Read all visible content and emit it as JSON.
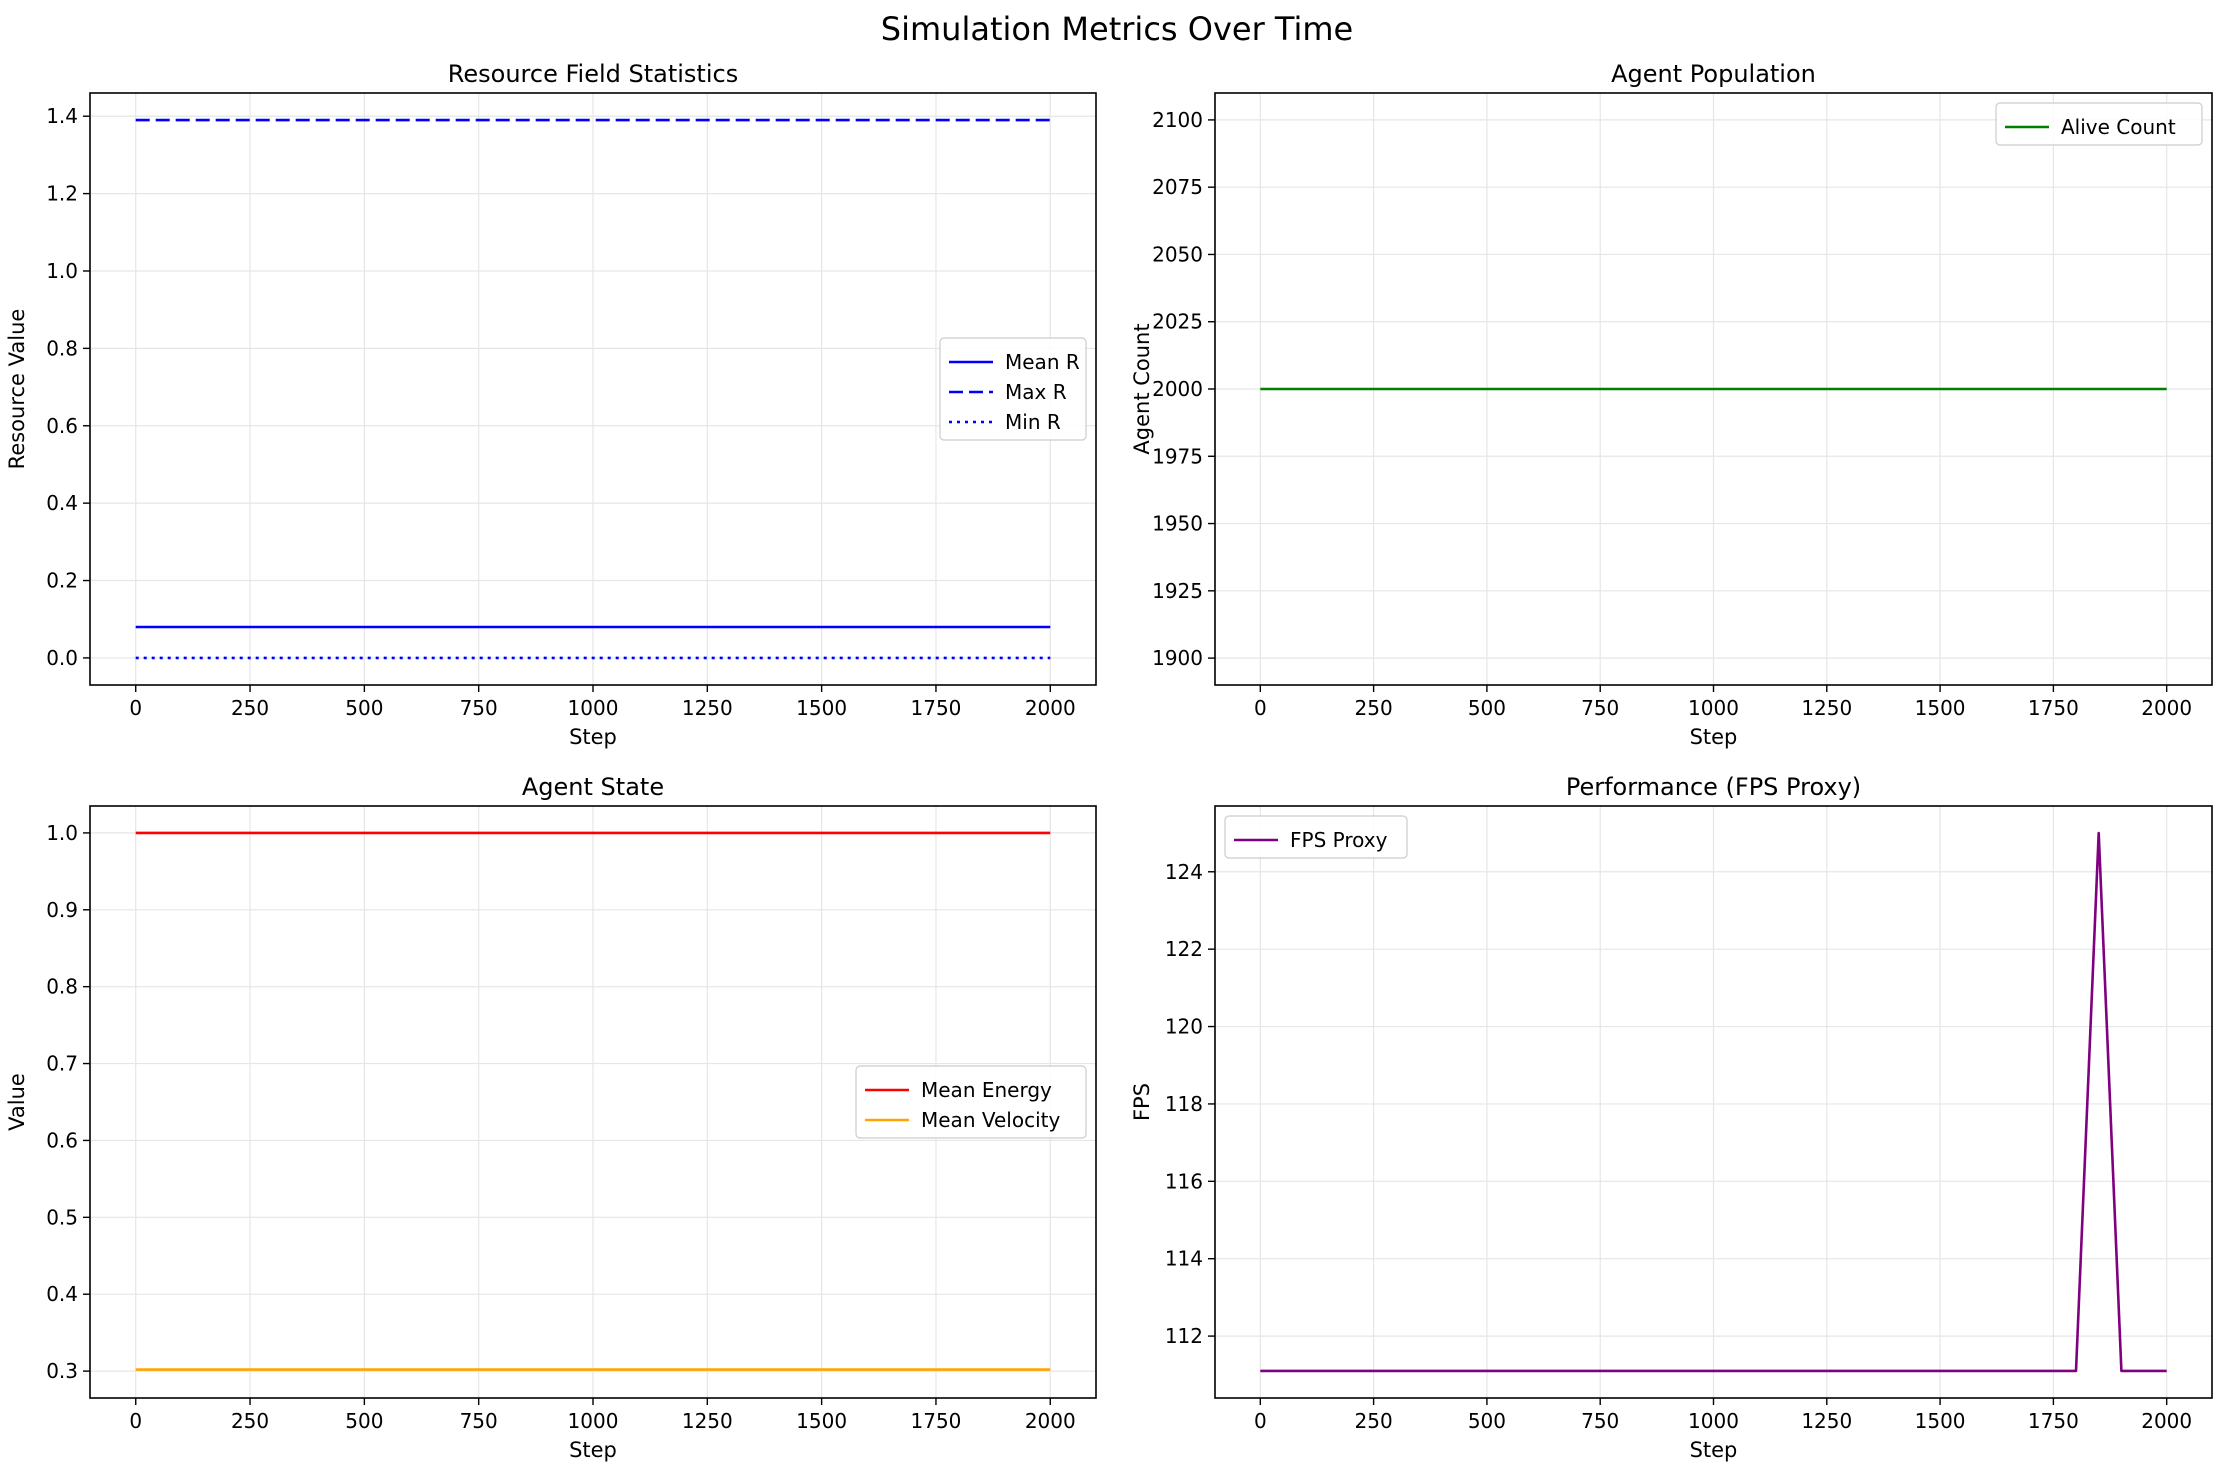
{
  "figure": {
    "title": "Simulation Metrics Over Time"
  },
  "chart_data": [
    {
      "type": "line",
      "title": "Resource Field Statistics",
      "xlabel": "Step",
      "ylabel": "Resource Value",
      "xlim": [
        -100,
        2100
      ],
      "ylim": [
        -0.07,
        1.46
      ],
      "xticks": [
        0,
        250,
        500,
        750,
        1000,
        1250,
        1500,
        1750,
        2000
      ],
      "yticks": [
        0.0,
        0.2,
        0.4,
        0.6,
        0.8,
        1.0,
        1.2,
        1.4
      ],
      "ytick_labels": [
        "0.0",
        "0.2",
        "0.4",
        "0.6",
        "0.8",
        "1.0",
        "1.2",
        "1.4"
      ],
      "grid": true,
      "legend": "center-right",
      "series": [
        {
          "name": "Mean R",
          "color": "#0000ff",
          "style": "solid",
          "x": [
            0,
            2000
          ],
          "y": [
            0.08,
            0.08
          ]
        },
        {
          "name": "Max R",
          "color": "#0000ff",
          "style": "dashed",
          "x": [
            0,
            2000
          ],
          "y": [
            1.39,
            1.39
          ]
        },
        {
          "name": "Min R",
          "color": "#0000ff",
          "style": "dotted",
          "x": [
            0,
            2000
          ],
          "y": [
            0.0,
            0.0
          ]
        }
      ]
    },
    {
      "type": "line",
      "title": "Agent Population",
      "xlabel": "Step",
      "ylabel": "Agent Count",
      "xlim": [
        -100,
        2100
      ],
      "ylim": [
        1890,
        2110
      ],
      "xticks": [
        0,
        250,
        500,
        750,
        1000,
        1250,
        1500,
        1750,
        2000
      ],
      "yticks": [
        1900,
        1925,
        1950,
        1975,
        2000,
        2025,
        2050,
        2075,
        2100
      ],
      "ytick_labels": [
        "1900",
        "1925",
        "1950",
        "1975",
        "2000",
        "2025",
        "2050",
        "2075",
        "2100"
      ],
      "grid": true,
      "legend": "upper-right",
      "series": [
        {
          "name": "Alive Count",
          "color": "#008000",
          "style": "solid",
          "x": [
            0,
            2000
          ],
          "y": [
            2000,
            2000
          ]
        }
      ]
    },
    {
      "type": "line",
      "title": "Agent State",
      "xlabel": "Step",
      "ylabel": "Value",
      "xlim": [
        -100,
        2100
      ],
      "ylim": [
        0.265,
        1.035
      ],
      "xticks": [
        0,
        250,
        500,
        750,
        1000,
        1250,
        1500,
        1750,
        2000
      ],
      "yticks": [
        0.3,
        0.4,
        0.5,
        0.6,
        0.7,
        0.8,
        0.9,
        1.0
      ],
      "ytick_labels": [
        "0.3",
        "0.4",
        "0.5",
        "0.6",
        "0.7",
        "0.8",
        "0.9",
        "1.0"
      ],
      "grid": true,
      "legend": "center-right",
      "series": [
        {
          "name": "Mean Energy",
          "color": "#ff0000",
          "style": "solid",
          "x": [
            0,
            2000
          ],
          "y": [
            1.0,
            1.0
          ]
        },
        {
          "name": "Mean Velocity",
          "color": "#ffa500",
          "style": "solid",
          "x": [
            0,
            2000
          ],
          "y": [
            0.302,
            0.302
          ]
        }
      ]
    },
    {
      "type": "line",
      "title": "Performance (FPS Proxy)",
      "xlabel": "Step",
      "ylabel": "FPS",
      "xlim": [
        -100,
        2100
      ],
      "ylim": [
        110.4,
        125.7
      ],
      "xticks": [
        0,
        250,
        500,
        750,
        1000,
        1250,
        1500,
        1750,
        2000
      ],
      "yticks": [
        112,
        114,
        116,
        118,
        120,
        122,
        124
      ],
      "ytick_labels": [
        "112",
        "114",
        "116",
        "118",
        "120",
        "122",
        "124"
      ],
      "grid": true,
      "legend": "upper-left",
      "series": [
        {
          "name": "FPS Proxy",
          "color": "#800080",
          "style": "solid",
          "x": [
            0,
            1800,
            1850,
            1900,
            2000
          ],
          "y": [
            111.1,
            111.1,
            125.0,
            111.1,
            111.1
          ]
        }
      ]
    }
  ]
}
